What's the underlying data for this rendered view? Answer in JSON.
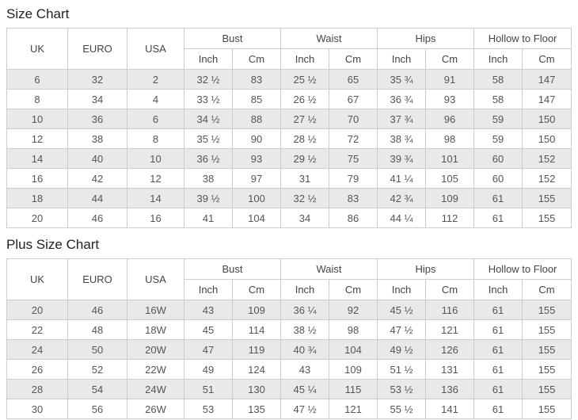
{
  "colors": {
    "stripe": "#e9e9e9",
    "border": "#cccccc",
    "header_text": "#444444",
    "cell_text": "#555555",
    "title_text": "#222222"
  },
  "tables": [
    {
      "title": "Size Chart",
      "simple_headers": [
        "UK",
        "EURO",
        "USA"
      ],
      "group_headers": [
        "Bust",
        "Waist",
        "Hips",
        "Hollow to Floor"
      ],
      "unit_headers": [
        "Inch",
        "Cm",
        "Inch",
        "Cm",
        "Inch",
        "Cm",
        "Inch",
        "Cm"
      ],
      "rows": [
        [
          "6",
          "32",
          "2",
          "32 ½",
          "83",
          "25 ½",
          "65",
          "35 ¾",
          "91",
          "58",
          "147"
        ],
        [
          "8",
          "34",
          "4",
          "33 ½",
          "85",
          "26 ½",
          "67",
          "36 ¾",
          "93",
          "58",
          "147"
        ],
        [
          "10",
          "36",
          "6",
          "34 ½",
          "88",
          "27 ½",
          "70",
          "37 ¾",
          "96",
          "59",
          "150"
        ],
        [
          "12",
          "38",
          "8",
          "35 ½",
          "90",
          "28 ½",
          "72",
          "38 ¾",
          "98",
          "59",
          "150"
        ],
        [
          "14",
          "40",
          "10",
          "36 ½",
          "93",
          "29 ½",
          "75",
          "39 ¾",
          "101",
          "60",
          "152"
        ],
        [
          "16",
          "42",
          "12",
          "38",
          "97",
          "31",
          "79",
          "41 ¼",
          "105",
          "60",
          "152"
        ],
        [
          "18",
          "44",
          "14",
          "39 ½",
          "100",
          "32 ½",
          "83",
          "42 ¾",
          "109",
          "61",
          "155"
        ],
        [
          "20",
          "46",
          "16",
          "41",
          "104",
          "34",
          "86",
          "44 ¼",
          "112",
          "61",
          "155"
        ]
      ]
    },
    {
      "title": "Plus Size Chart",
      "simple_headers": [
        "UK",
        "EURO",
        "USA"
      ],
      "group_headers": [
        "Bust",
        "Waist",
        "Hips",
        "Hollow to Floor"
      ],
      "unit_headers": [
        "Inch",
        "Cm",
        "Inch",
        "Cm",
        "Inch",
        "Cm",
        "Inch",
        "Cm"
      ],
      "rows": [
        [
          "20",
          "46",
          "16W",
          "43",
          "109",
          "36 ¼",
          "92",
          "45 ½",
          "116",
          "61",
          "155"
        ],
        [
          "22",
          "48",
          "18W",
          "45",
          "114",
          "38 ½",
          "98",
          "47 ½",
          "121",
          "61",
          "155"
        ],
        [
          "24",
          "50",
          "20W",
          "47",
          "119",
          "40 ¾",
          "104",
          "49 ½",
          "126",
          "61",
          "155"
        ],
        [
          "26",
          "52",
          "22W",
          "49",
          "124",
          "43",
          "109",
          "51 ½",
          "131",
          "61",
          "155"
        ],
        [
          "28",
          "54",
          "24W",
          "51",
          "130",
          "45 ¼",
          "115",
          "53 ½",
          "136",
          "61",
          "155"
        ],
        [
          "30",
          "56",
          "26W",
          "53",
          "135",
          "47 ½",
          "121",
          "55 ½",
          "141",
          "61",
          "155"
        ]
      ]
    }
  ]
}
